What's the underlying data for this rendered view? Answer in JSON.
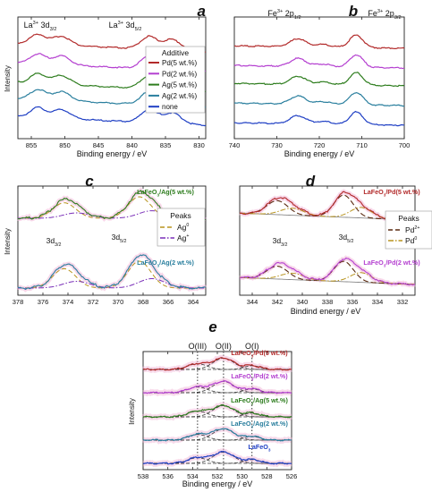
{
  "colors": {
    "pd5": "#b22a2a",
    "pd2": "#b43fd0",
    "ag5": "#2e7d1e",
    "ag2": "#2a7f9e",
    "none": "#1f3fc4",
    "fit_dark": "#5a2a10",
    "fit_gold": "#b8941f",
    "fit_purple": "#7a2fb8",
    "guide": "#222222",
    "pink_glow": "#f2b8d8"
  },
  "chart_data": [
    {
      "id": "a",
      "type": "line",
      "panel_label": "a",
      "xlabel": "Binding energy / eV",
      "ylabel": "Intensity",
      "xlim": [
        857,
        829
      ],
      "xticks": [
        855,
        850,
        845,
        840,
        835,
        830
      ],
      "peak_labels": [
        {
          "x": 851.5,
          "text": "La",
          "sup": "3+",
          "mid": " 3d",
          "sub": "3/2"
        },
        {
          "x": 837.5,
          "text": "La",
          "sup": "3+",
          "mid": " 3d",
          "sub": "5/2"
        }
      ],
      "legend": {
        "title": "Additive",
        "position": "right",
        "entries": [
          "Pd(5 wt.%)",
          "Pd(2 wt.%)",
          "Ag(5 wt.%)",
          "Ag(2 wt.%)",
          "none"
        ]
      },
      "series": [
        {
          "name": "Pd(5 wt.%)",
          "color_key": "pd5",
          "offset": 4
        },
        {
          "name": "Pd(2 wt.%)",
          "color_key": "pd2",
          "offset": 3
        },
        {
          "name": "Ag(5 wt.%)",
          "color_key": "ag5",
          "offset": 2
        },
        {
          "name": "Ag(2 wt.%)",
          "color_key": "ag2",
          "offset": 1
        },
        {
          "name": "none",
          "color_key": "none",
          "offset": 0
        }
      ]
    },
    {
      "id": "b",
      "type": "line",
      "panel_label": "b",
      "xlabel": "Binding energy / eV",
      "ylabel": "",
      "xlim": [
        740,
        700
      ],
      "xticks": [
        740,
        730,
        720,
        710,
        700
      ],
      "peak_labels": [
        {
          "x": 724.5,
          "text": "Fe",
          "sup": "3+",
          "mid": " 2p",
          "sub": "1/2"
        },
        {
          "x": 711,
          "text": "Fe",
          "sup": "3+",
          "mid": " 2p",
          "sub": "3/2"
        }
      ],
      "series": [
        {
          "color_key": "pd5",
          "offset": 4
        },
        {
          "color_key": "pd2",
          "offset": 3
        },
        {
          "color_key": "ag5",
          "offset": 2
        },
        {
          "color_key": "ag2",
          "offset": 1
        },
        {
          "color_key": "none",
          "offset": 0
        }
      ]
    },
    {
      "id": "c",
      "type": "line",
      "panel_label": "c",
      "xlabel": "",
      "ylabel": "Intensity",
      "xlim": [
        378,
        363
      ],
      "xticks": [
        378,
        376,
        374,
        372,
        370,
        368,
        366,
        364
      ],
      "peak_labels": [
        {
          "x": 373.8,
          "text": "",
          "sup": "",
          "mid": "3d",
          "sub": "3/2"
        },
        {
          "x": 368.3,
          "text": "",
          "sup": "",
          "mid": "3d",
          "sub": "5/2"
        }
      ],
      "legend": {
        "title": "Peaks",
        "position": "right",
        "entries": [
          {
            "base": "Ag",
            "sup": "0"
          },
          {
            "base": "Ag",
            "sup": "+"
          }
        ]
      },
      "series": [
        {
          "name_parts": [
            "LaFeO",
            "3",
            "/Ag(5 wt.%)"
          ],
          "color_key": "ag5",
          "offset": 1
        },
        {
          "name_parts": [
            "LaFeO",
            "3",
            "/Ag(2 wt.%)"
          ],
          "color_key": "ag2",
          "offset": 0
        }
      ]
    },
    {
      "id": "d",
      "type": "line",
      "panel_label": "d",
      "xlabel": "Bindind energy / eV",
      "ylabel": "",
      "xlim": [
        345,
        331
      ],
      "xticks": [
        344,
        342,
        340,
        338,
        336,
        334,
        332
      ],
      "peak_labels": [
        {
          "x": 341.5,
          "text": "",
          "sup": "",
          "mid": "3d",
          "sub": "3/2"
        },
        {
          "x": 336.2,
          "text": "",
          "sup": "",
          "mid": "3d",
          "sub": "5/2"
        }
      ],
      "legend": {
        "title": "Peaks",
        "position": "right",
        "entries": [
          {
            "base": "Pd",
            "sup": "2+"
          },
          {
            "base": "Pd",
            "sup": "0"
          }
        ]
      },
      "series": [
        {
          "name_parts": [
            "LaFeO",
            "3",
            "/Pd(5 wt.%)"
          ],
          "color_key": "pd5",
          "offset": 1
        },
        {
          "name_parts": [
            "LaFeO",
            "3",
            "/Pd(2 wt.%)"
          ],
          "color_key": "pd2",
          "offset": 0
        }
      ]
    },
    {
      "id": "e",
      "type": "line",
      "panel_label": "e",
      "xlabel": "Binding energy / eV",
      "ylabel": "Intensity",
      "xlim": [
        538,
        526
      ],
      "xticks": [
        538,
        536,
        534,
        532,
        530,
        528,
        526
      ],
      "guides": [
        {
          "x": 533.6,
          "label": "O(III)"
        },
        {
          "x": 531.5,
          "label": "O(II)"
        },
        {
          "x": 529.2,
          "label": "O(I)"
        }
      ],
      "series": [
        {
          "name_parts": [
            "LaFeO",
            "3",
            "/Pd(5 wt.%)"
          ],
          "color_key": "pd5",
          "offset": 4
        },
        {
          "name_parts": [
            "LaFeO",
            "3",
            "/Pd(2 wt.%)"
          ],
          "color_key": "pd2",
          "offset": 3
        },
        {
          "name_parts": [
            "LaFeO",
            "3",
            "/Ag(5 wt.%)"
          ],
          "color_key": "ag5",
          "offset": 2
        },
        {
          "name_parts": [
            "LaFeO",
            "3",
            "/Ag(2 wt.%)"
          ],
          "color_key": "ag2",
          "offset": 1
        },
        {
          "name_parts": [
            "LaFeO",
            "3",
            ""
          ],
          "color_key": "none",
          "offset": 0
        }
      ]
    }
  ]
}
